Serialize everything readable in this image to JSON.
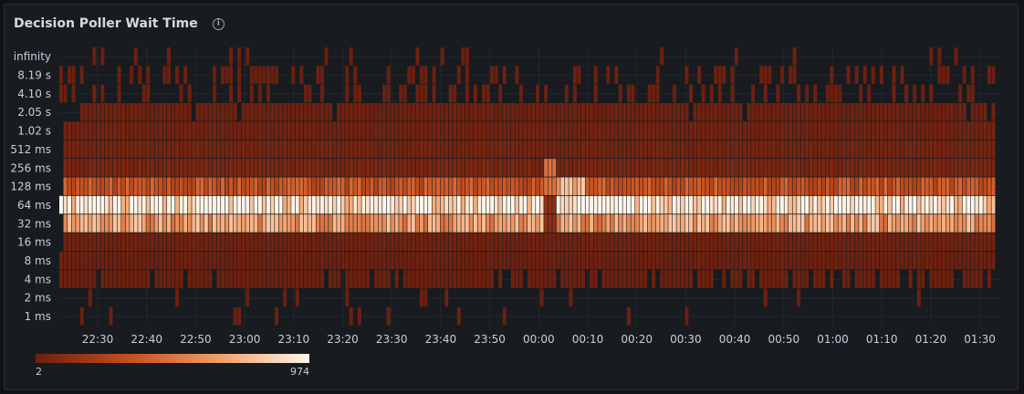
{
  "panel": {
    "title": "Decision Poller Wait Time",
    "info_icon": "info-circle-icon"
  },
  "chart_data": {
    "type": "heatmap",
    "title": "Decision Poller Wait Time",
    "y_buckets": [
      "1 ms",
      "2 ms",
      "4 ms",
      "8 ms",
      "16 ms",
      "32 ms",
      "64 ms",
      "128 ms",
      "256 ms",
      "512 ms",
      "1.02 s",
      "2.05 s",
      "4.10 s",
      "8.19 s",
      "infinity"
    ],
    "x_ticks": [
      "22:30",
      "22:40",
      "22:50",
      "23:00",
      "23:10",
      "23:20",
      "23:30",
      "23:40",
      "23:50",
      "00:00",
      "00:10",
      "00:20",
      "00:30",
      "00:40",
      "00:50",
      "01:00",
      "01:10",
      "01:20",
      "01:30"
    ],
    "x_range": [
      "22:26",
      "01:30"
    ],
    "num_columns": 226,
    "bucket_typical_counts": {
      "1 ms": 0,
      "2 ms": 0,
      "4 ms": 12,
      "8 ms": 15,
      "16 ms": 25,
      "32 ms": 620,
      "64 ms": 930,
      "128 ms": 330,
      "256 ms": 55,
      "512 ms": 40,
      "1.02 s": 30,
      "2.05 s": 20,
      "4.10 s": 0,
      "8.19 s": 0,
      "infinity": 0
    },
    "color_scale": {
      "min": 2,
      "max": 974,
      "colors": [
        "#6b1f0f",
        "#c8501f",
        "#f4a672",
        "#fff6ea"
      ]
    },
    "legend": {
      "min_label": "2",
      "max_label": "974"
    }
  }
}
